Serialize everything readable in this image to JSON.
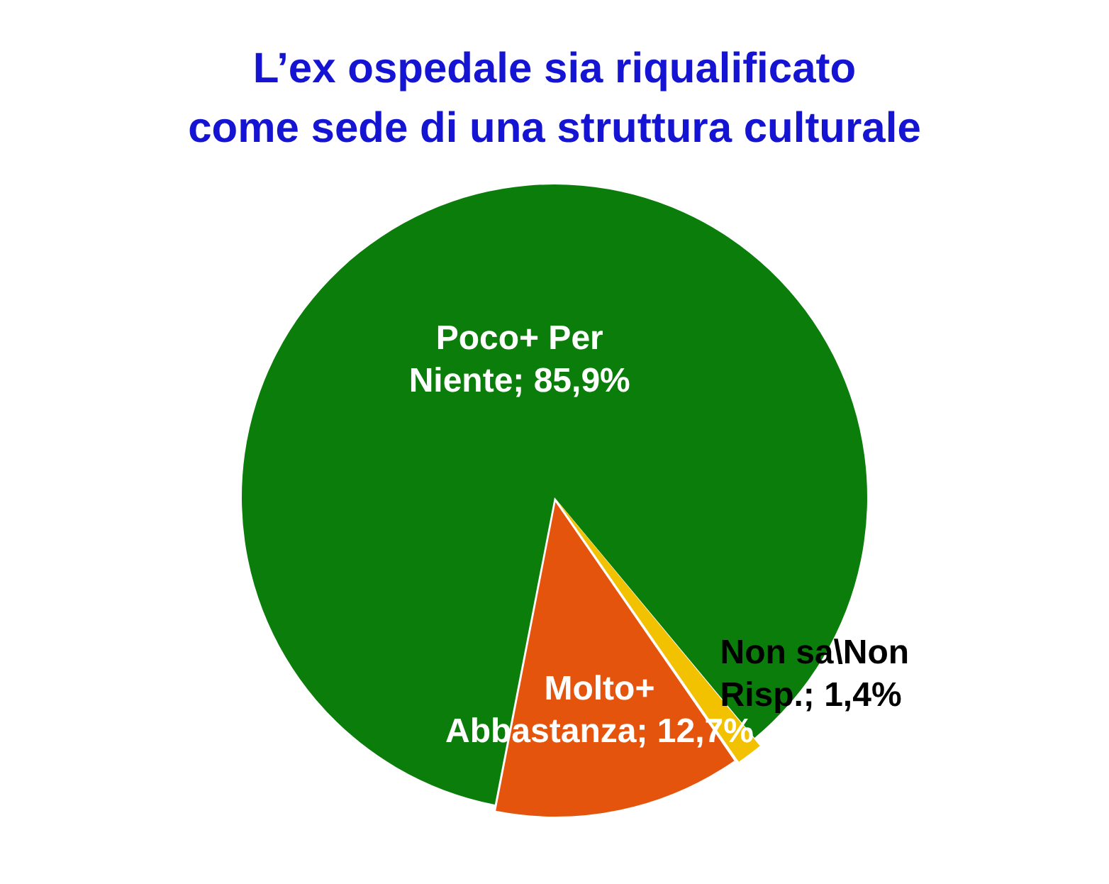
{
  "chart_data": {
    "type": "pie",
    "title": "L’ex ospedale sia riqualificato\ncome sede di una struttura culturale",
    "categories": [
      "Poco+ Per Niente",
      "Non sa\\Non Risp.",
      "Molto+ Abbastanza"
    ],
    "values": [
      85.9,
      1.4,
      12.7
    ],
    "colors": [
      "#0b7d0b",
      "#f2c200",
      "#e5540c"
    ],
    "value_labels": [
      "85,9%",
      "1,4%",
      "12,7%"
    ],
    "legend": false
  }
}
